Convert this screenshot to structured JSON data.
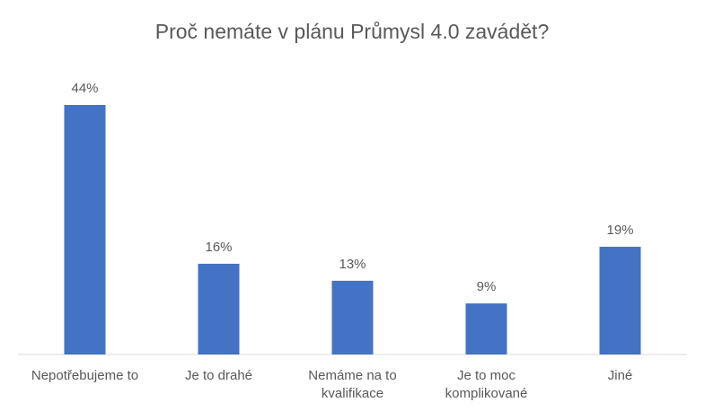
{
  "chart_data": {
    "type": "bar",
    "title": "Proč nemáte v plánu Průmysl 4.0 zavádět?",
    "categories": [
      "Nepotřebujeme to",
      "Je to drahé",
      "Nemáme na to kvalifikace",
      "Je to moc komplikované",
      "Jiné"
    ],
    "values": [
      44,
      16,
      13,
      9,
      19
    ],
    "value_labels": [
      "44%",
      "16%",
      "13%",
      "9%",
      "19%"
    ],
    "color": "#4472c4"
  }
}
